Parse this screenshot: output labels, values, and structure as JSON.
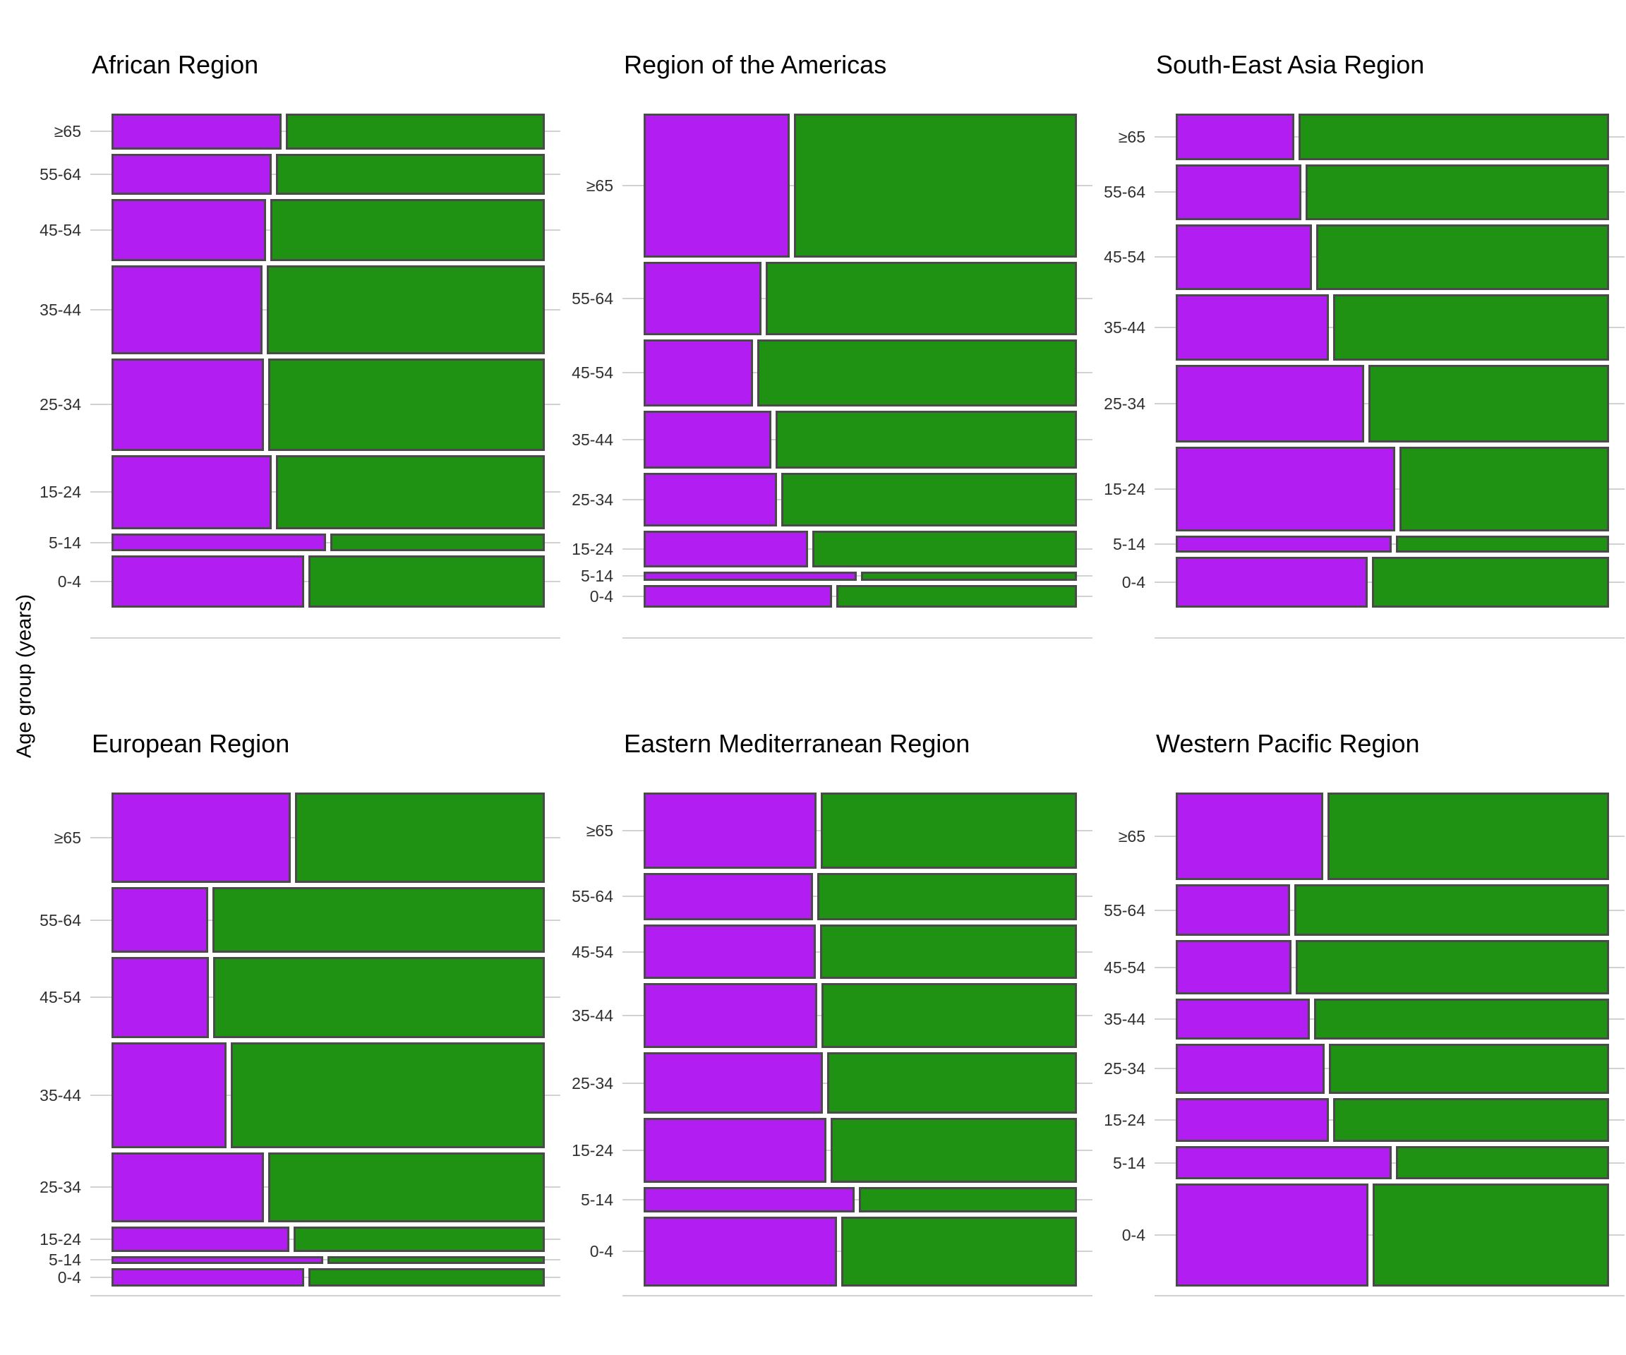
{
  "chart_data": {
    "type": "mosaic",
    "description": "Six mosaic plots, one per WHO region. Row height = share of total (percent, top-to-bottom by age group); each row split into a left purple segment and right green segment (percent of row width).",
    "ylabel": "Age group (years)",
    "age_groups_top_to_bottom": [
      "≥65",
      "55-64",
      "45-54",
      "35-44",
      "25-34",
      "15-24",
      "5-14",
      "0-4"
    ],
    "legend": "none",
    "grid": "light horizontal tick lines at each age-group row center; faint baseline under each panel",
    "colors": {
      "left_segment": "#b21ef2",
      "right_segment": "#209213",
      "segment_border": "#4a4a4a",
      "gridline": "#d2d2d2",
      "axis_text": "#303030",
      "title_text": "#000000",
      "background": "#ffffff"
    },
    "panels": [
      {
        "title": "African Region",
        "row_height_pct": [
          7.7,
          8.9,
          13.3,
          19.3,
          19.8,
          16.1,
          3.8,
          11.2
        ],
        "left_segment_pct": [
          39.8,
          37.5,
          36.2,
          35.4,
          35.6,
          37.4,
          50.0,
          44.9
        ]
      },
      {
        "title": "Region of the Americas",
        "row_height_pct": [
          31.0,
          15.7,
          14.5,
          12.4,
          11.5,
          7.9,
          2.0,
          4.9
        ],
        "left_segment_pct": [
          34.2,
          27.7,
          25.8,
          30.0,
          31.2,
          38.4,
          49.7,
          44.0
        ]
      },
      {
        "title": "South-East Asia Region",
        "row_height_pct": [
          10.0,
          12.0,
          14.1,
          14.3,
          16.7,
          18.3,
          3.5,
          11.0
        ],
        "left_segment_pct": [
          27.8,
          29.5,
          31.9,
          35.9,
          44.0,
          51.1,
          50.4,
          44.8
        ]
      },
      {
        "title": "European Region",
        "row_height_pct": [
          19.5,
          14.1,
          17.5,
          22.8,
          15.1,
          5.5,
          1.6,
          4.0
        ],
        "left_segment_pct": [
          41.9,
          22.8,
          23.0,
          27.1,
          35.6,
          41.6,
          49.4,
          44.9
        ]
      },
      {
        "title": "Eastern Mediterranean Region",
        "row_height_pct": [
          16.4,
          10.2,
          11.8,
          13.9,
          13.3,
          14.0,
          5.4,
          15.1
        ],
        "left_segment_pct": [
          40.4,
          39.5,
          40.2,
          40.6,
          41.9,
          42.7,
          49.2,
          45.1
        ]
      },
      {
        "title": "Western Pacific Region",
        "row_height_pct": [
          18.9,
          11.1,
          11.6,
          8.9,
          10.7,
          9.5,
          7.1,
          22.2
        ],
        "left_segment_pct": [
          34.5,
          26.8,
          27.2,
          31.5,
          34.9,
          35.9,
          50.3,
          45.0
        ]
      }
    ]
  }
}
